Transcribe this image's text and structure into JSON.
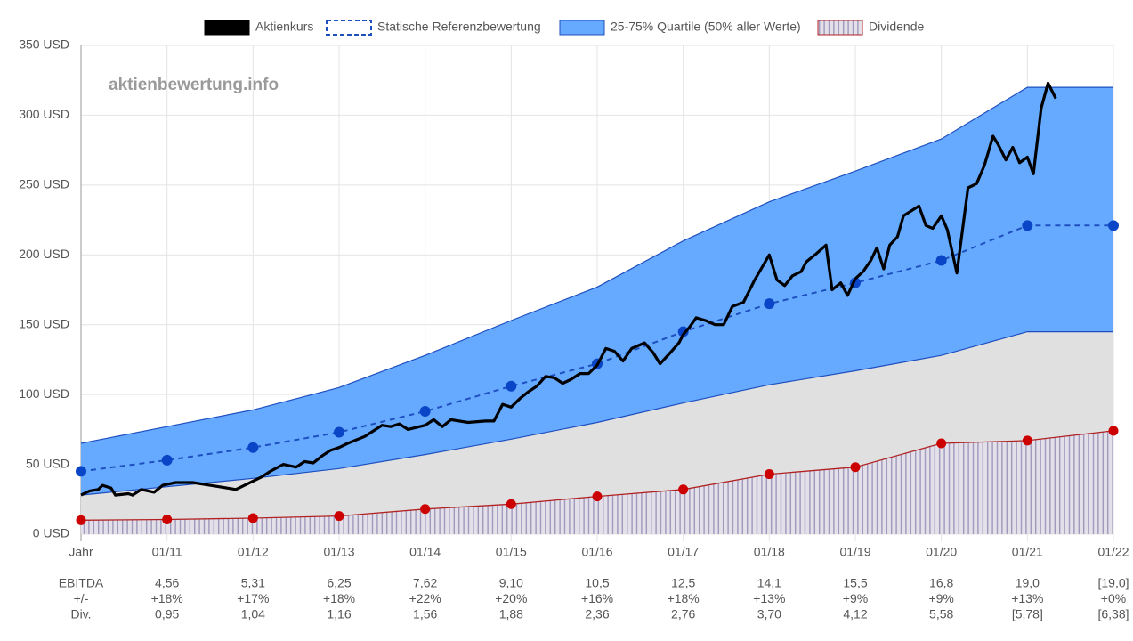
{
  "chart_data": {
    "type": "line",
    "watermark": "aktienbewertung.info",
    "xlim": [
      2010,
      2022
    ],
    "xticks": [
      {
        "value": 2010,
        "label": "Jahr"
      },
      {
        "value": 2011,
        "label": "01/11"
      },
      {
        "value": 2012,
        "label": "01/12"
      },
      {
        "value": 2013,
        "label": "01/13"
      },
      {
        "value": 2014,
        "label": "01/14"
      },
      {
        "value": 2015,
        "label": "01/15"
      },
      {
        "value": 2016,
        "label": "01/16"
      },
      {
        "value": 2017,
        "label": "01/17"
      },
      {
        "value": 2018,
        "label": "01/18"
      },
      {
        "value": 2019,
        "label": "01/19"
      },
      {
        "value": 2020,
        "label": "01/20"
      },
      {
        "value": 2021,
        "label": "01/21"
      },
      {
        "value": 2022,
        "label": "01/22"
      }
    ],
    "ylim": [
      0,
      350
    ],
    "yticks": [
      {
        "value": 0,
        "label": "0 USD"
      },
      {
        "value": 50,
        "label": "50 USD"
      },
      {
        "value": 100,
        "label": "100 USD"
      },
      {
        "value": 150,
        "label": "150 USD"
      },
      {
        "value": 200,
        "label": "200 USD"
      },
      {
        "value": 250,
        "label": "250 USD"
      },
      {
        "value": 300,
        "label": "300 USD"
      },
      {
        "value": 350,
        "label": "350 USD"
      }
    ],
    "grid": true,
    "legend": "top",
    "series": [
      {
        "name": "Aktienkurs",
        "type": "line",
        "color": "#000000",
        "x": [
          2010.0,
          2010.1,
          2010.2,
          2010.25,
          2010.35,
          2010.4,
          2010.55,
          2010.6,
          2010.7,
          2010.85,
          2010.95,
          2011.1,
          2011.3,
          2011.5,
          2011.7,
          2011.8,
          2012.0,
          2012.1,
          2012.2,
          2012.35,
          2012.5,
          2012.6,
          2012.7,
          2012.8,
          2012.9,
          2013.0,
          2013.1,
          2013.3,
          2013.4,
          2013.5,
          2013.6,
          2013.7,
          2013.8,
          2014.0,
          2014.1,
          2014.2,
          2014.3,
          2014.5,
          2014.7,
          2014.8,
          2014.9,
          2015.0,
          2015.1,
          2015.2,
          2015.3,
          2015.4,
          2015.5,
          2015.6,
          2015.7,
          2015.8,
          2015.9,
          2016.0,
          2016.1,
          2016.2,
          2016.3,
          2016.4,
          2016.55,
          2016.65,
          2016.73,
          2016.85,
          2016.95,
          2017.0,
          2017.07,
          2017.15,
          2017.26,
          2017.37,
          2017.47,
          2017.57,
          2017.7,
          2017.83,
          2018.0,
          2018.09,
          2018.18,
          2018.27,
          2018.37,
          2018.43,
          2018.53,
          2018.66,
          2018.73,
          2018.83,
          2018.91,
          2019.0,
          2019.09,
          2019.18,
          2019.25,
          2019.33,
          2019.4,
          2019.49,
          2019.56,
          2019.74,
          2019.82,
          2019.9,
          2020.0,
          2020.07,
          2020.18,
          2020.31,
          2020.41,
          2020.5,
          2020.6,
          2020.66,
          2020.75,
          2020.83,
          2020.91,
          2021.0,
          2021.07,
          2021.16,
          2021.24,
          2021.33
        ],
        "values": [
          28,
          31,
          32,
          35,
          33,
          28,
          29,
          28,
          32,
          30,
          35,
          37,
          37,
          35,
          33,
          32,
          38,
          41,
          45,
          50,
          48,
          52,
          51,
          56,
          60,
          62,
          65,
          70,
          74,
          78,
          77,
          79,
          75,
          78,
          82,
          77,
          82,
          80,
          81,
          81,
          93,
          91,
          97,
          102,
          106,
          113,
          112,
          108,
          111,
          115,
          115,
          121,
          133,
          131,
          124,
          133,
          137,
          130,
          122,
          130,
          137,
          143,
          148,
          155,
          153,
          150,
          150,
          163,
          166,
          182,
          200,
          182,
          178,
          185,
          188,
          195,
          200,
          207,
          175,
          180,
          171,
          183,
          188,
          196,
          205,
          190,
          207,
          213,
          228,
          235,
          221,
          219,
          228,
          218,
          187,
          248,
          251,
          264,
          285,
          279,
          268,
          277,
          266,
          270,
          258,
          305,
          323,
          312
        ]
      },
      {
        "name": "Statische Referenzbewertung",
        "type": "dashed",
        "color": "#1e4fbf",
        "x": [
          2010,
          2011,
          2012,
          2013,
          2014,
          2015,
          2016,
          2017,
          2018,
          2019,
          2020,
          2021,
          2022
        ],
        "values": [
          45,
          53,
          62,
          73,
          88,
          106,
          122,
          145,
          165,
          180,
          196,
          221,
          221
        ]
      },
      {
        "name": "25-75% Quartile (50% aller Werte)",
        "type": "band",
        "color": "#66aaff",
        "x": [
          2010,
          2011,
          2012,
          2013,
          2014,
          2015,
          2016,
          2017,
          2018,
          2019,
          2020,
          2021,
          2022
        ],
        "upper": [
          65,
          77,
          89,
          105,
          128,
          153,
          177,
          210,
          238,
          260,
          283,
          320,
          320
        ],
        "lower": [
          28,
          34,
          40,
          47,
          57,
          68,
          80,
          94,
          107,
          117,
          128,
          145,
          145
        ]
      },
      {
        "name": "Dividende",
        "type": "hatched",
        "color": "#b22222",
        "x": [
          2010,
          2011,
          2012,
          2013,
          2014,
          2015,
          2016,
          2017,
          2018,
          2019,
          2020,
          2021,
          2022
        ],
        "values": [
          10,
          10.5,
          11.5,
          13,
          18,
          21.5,
          27,
          32,
          43,
          48,
          65,
          67,
          74
        ]
      }
    ]
  },
  "table": {
    "rows": [
      [
        "EBITDA",
        "4,56",
        "5,31",
        "6,25",
        "7,62",
        "9,10",
        "10,5",
        "12,5",
        "14,1",
        "15,5",
        "16,8",
        "19,0",
        "[19,0]"
      ],
      [
        "+/-",
        "+18%",
        "+17%",
        "+18%",
        "+22%",
        "+20%",
        "+16%",
        "+18%",
        "+13%",
        "+9%",
        "+9%",
        "+13%",
        "+0%"
      ],
      [
        "Div.",
        "0,95",
        "1,04",
        "1,16",
        "1,56",
        "1,88",
        "2,36",
        "2,76",
        "3,70",
        "4,12",
        "5,58",
        "[5,78]",
        "[6,38]"
      ]
    ]
  }
}
